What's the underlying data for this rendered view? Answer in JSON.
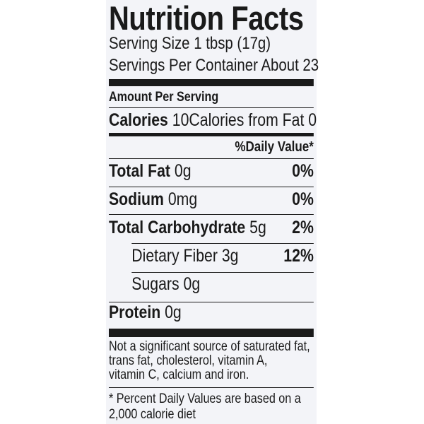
{
  "title": "Nutrition Facts",
  "serving_size": "Serving Size 1 tbsp (17g)",
  "servings_per_container": "Servings Per Container About 23",
  "amount_per_serving": "Amount Per Serving",
  "calories": {
    "label": "Calories",
    "value": "10",
    "from_fat": "Calories from Fat 0"
  },
  "daily_value_header": "%Daily Value*",
  "nutrients": [
    {
      "name": "Total Fat",
      "amount": "0g",
      "dv": "0%"
    },
    {
      "name": "Sodium",
      "amount": "0mg",
      "dv": "0%"
    },
    {
      "name": "Total Carbohydrate",
      "amount": "5g",
      "dv": "2%",
      "sub": [
        {
          "name": "Dietary Fiber",
          "amount": "3g",
          "dv": "12%"
        },
        {
          "name": "Sugars",
          "amount": "0g"
        }
      ]
    },
    {
      "name": "Protein",
      "amount": "0g"
    }
  ],
  "footnote": [
    "Not a significant source of saturated fat,",
    "trans fat, cholesterol, vitamin A,",
    "vitamin C, calcium and iron."
  ],
  "daily_value_note": [
    "* Percent Daily Values are based on a",
    "2,000 calorie diet"
  ]
}
